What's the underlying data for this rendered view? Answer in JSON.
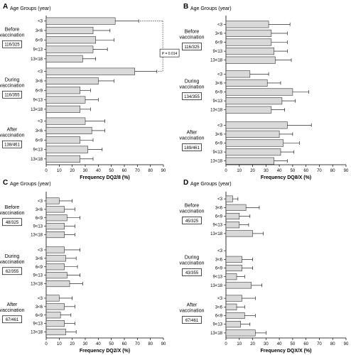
{
  "figure": {
    "bar_fill": "#d9d9d9",
    "bar_stroke": "#333333"
  },
  "chart_data": [
    {
      "type": "bar",
      "orientation": "horizontal",
      "panel_letter": "A",
      "ylabel": "Age Groups (year)",
      "xlabel": "Frequency DQ2/8 (%)",
      "xlim": [
        0,
        90
      ],
      "xticks": [
        0,
        10,
        20,
        30,
        40,
        50,
        60,
        70,
        80,
        90
      ],
      "age_labels": [
        "<3",
        "3<6",
        "6<9",
        "9<13",
        "13<18"
      ],
      "annotation": "P = 0.014",
      "groups": [
        {
          "label": "Before vaccination",
          "count": "116/325",
          "values": [
            53,
            36,
            38,
            36,
            28
          ],
          "errors": [
            18,
            13,
            14,
            11,
            10
          ]
        },
        {
          "label": "During vaccination",
          "count": "116/355",
          "values": [
            68,
            40,
            26,
            30,
            26
          ],
          "errors": [
            17,
            12,
            8,
            10,
            8
          ]
        },
        {
          "label": "After vaccination",
          "count": "138/461",
          "values": [
            30,
            35,
            26,
            32,
            26
          ],
          "errors": [
            15,
            10,
            10,
            11,
            10
          ]
        }
      ]
    },
    {
      "type": "bar",
      "orientation": "horizontal",
      "panel_letter": "B",
      "ylabel": "Age Groups (year)",
      "xlabel": "Frequency DQ8/X (%)",
      "xlim": [
        0,
        90
      ],
      "xticks": [
        0,
        10,
        20,
        30,
        40,
        50,
        60,
        70,
        80,
        90
      ],
      "age_labels": [
        "<3",
        "3<6",
        "6<9",
        "9<13",
        "13<18"
      ],
      "groups": [
        {
          "label": "Before vaccination",
          "count": "116/325",
          "values": [
            32,
            34,
            34,
            36,
            37
          ],
          "errors": [
            16,
            12,
            12,
            10,
            12
          ]
        },
        {
          "label": "During vaccination",
          "count": "134/355",
          "values": [
            18,
            31,
            50,
            42,
            34
          ],
          "errors": [
            14,
            10,
            12,
            10,
            10
          ]
        },
        {
          "label": "After vaccination",
          "count": "189/461",
          "values": [
            46,
            40,
            43,
            41,
            36
          ],
          "errors": [
            18,
            10,
            12,
            10,
            10
          ]
        }
      ]
    },
    {
      "type": "bar",
      "orientation": "horizontal",
      "panel_letter": "C",
      "ylabel": "Age Groups (year)",
      "xlabel": "Frequency DQ2/X (%)",
      "xlim": [
        0,
        90
      ],
      "xticks": [
        0,
        10,
        20,
        30,
        40,
        50,
        60,
        70,
        80,
        90
      ],
      "age_labels": [
        "<3",
        "3<6",
        "6<9",
        "9<13",
        "13<18"
      ],
      "groups": [
        {
          "label": "Before vaccination",
          "count": "48/325",
          "values": [
            10,
            14,
            16,
            14,
            14
          ],
          "errors": [
            10,
            8,
            10,
            8,
            8
          ]
        },
        {
          "label": "During vaccination",
          "count": "62/355",
          "values": [
            14,
            15,
            14,
            16,
            18
          ],
          "errors": [
            12,
            8,
            10,
            10,
            10
          ]
        },
        {
          "label": "After vaccination",
          "count": "67/461",
          "values": [
            10,
            14,
            11,
            14,
            15
          ],
          "errors": [
            10,
            8,
            8,
            8,
            8
          ]
        }
      ]
    },
    {
      "type": "bar",
      "orientation": "horizontal",
      "panel_letter": "D",
      "ylabel": "Age Groups (year)",
      "xlabel": "Frequency DQX/X (%)",
      "xlim": [
        0,
        90
      ],
      "xticks": [
        0,
        10,
        20,
        30,
        40,
        50,
        60,
        70,
        80,
        90
      ],
      "age_labels": [
        "<3",
        "3<6",
        "6<9",
        "9<13",
        "13<18"
      ],
      "groups": [
        {
          "label": "Before vaccination",
          "count": "45/325",
          "values": [
            5,
            15,
            10,
            10,
            20
          ],
          "errors": [
            4,
            10,
            8,
            7,
            8
          ]
        },
        {
          "label": "During vaccination",
          "count": "43/355",
          "values": [
            0,
            12,
            12,
            8,
            19
          ],
          "errors": [
            0,
            8,
            8,
            6,
            8
          ]
        },
        {
          "label": "After vaccination",
          "count": "67/461",
          "values": [
            12,
            8,
            14,
            11,
            22
          ],
          "errors": [
            10,
            6,
            8,
            7,
            8
          ]
        }
      ]
    }
  ]
}
